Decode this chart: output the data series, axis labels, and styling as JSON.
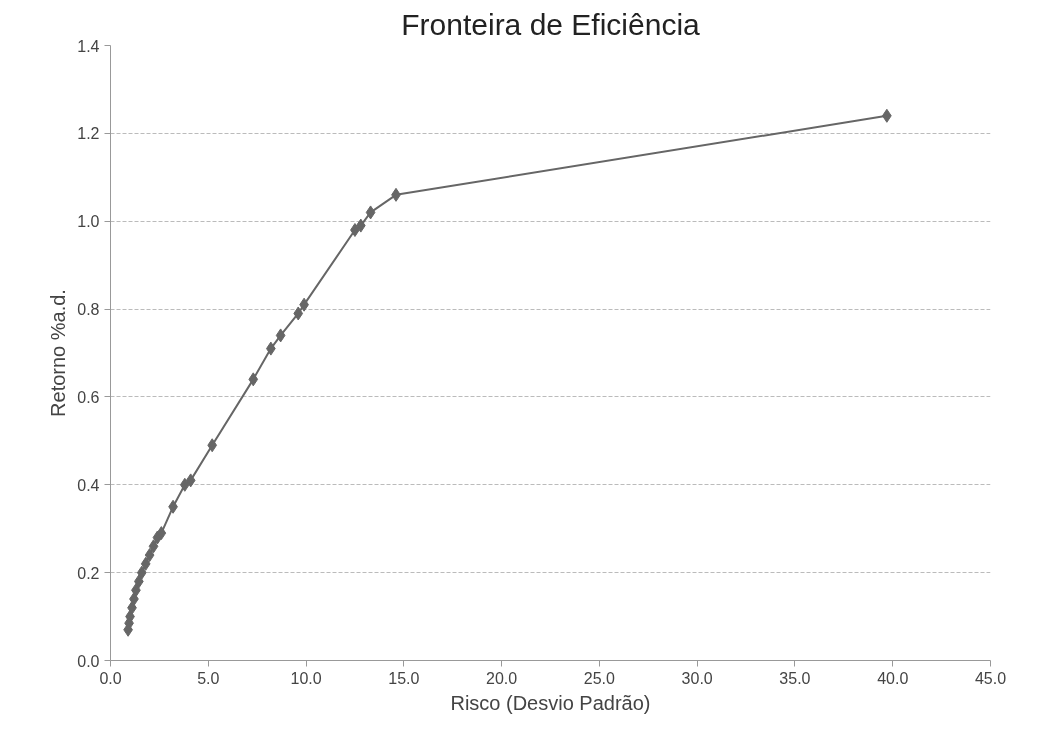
{
  "chart_data": {
    "type": "line",
    "title": "Fronteira de Eficiência",
    "xlabel": "Risco (Desvio Padrão)",
    "ylabel": "Retorno %a.d.",
    "x": [
      0.9,
      0.95,
      1.0,
      1.1,
      1.2,
      1.3,
      1.45,
      1.6,
      1.8,
      2.0,
      2.2,
      2.4,
      2.6,
      3.2,
      3.8,
      4.1,
      5.2,
      7.3,
      8.2,
      8.7,
      9.6,
      9.9,
      12.5,
      12.8,
      13.3,
      14.6,
      39.7
    ],
    "series": [
      {
        "color": "#666666",
        "values": [
          0.07,
          0.085,
          0.1,
          0.12,
          0.14,
          0.16,
          0.18,
          0.2,
          0.22,
          0.24,
          0.26,
          0.28,
          0.29,
          0.35,
          0.4,
          0.41,
          0.49,
          0.64,
          0.71,
          0.74,
          0.79,
          0.81,
          0.98,
          0.99,
          1.02,
          1.06,
          1.24
        ]
      }
    ],
    "xlim": [
      0,
      45
    ],
    "ylim": [
      0,
      1.4
    ],
    "xticks": [
      {
        "value": 0,
        "label": "0.0"
      },
      {
        "value": 5,
        "label": "5.0"
      },
      {
        "value": 10,
        "label": "10.0"
      },
      {
        "value": 15,
        "label": "15.0"
      },
      {
        "value": 20,
        "label": "20.0"
      },
      {
        "value": 25,
        "label": "25.0"
      },
      {
        "value": 30,
        "label": "30.0"
      },
      {
        "value": 35,
        "label": "35.0"
      },
      {
        "value": 40,
        "label": "40.0"
      },
      {
        "value": 45,
        "label": "45.0"
      }
    ],
    "yticks": [
      {
        "value": 0,
        "label": "0.0"
      },
      0.2,
      0.4,
      0.6,
      0.8,
      {
        "value": 1,
        "label": "1.0"
      },
      1.2,
      1.4
    ],
    "grid": "y",
    "marker": "diamond",
    "line_style": "solid"
  }
}
